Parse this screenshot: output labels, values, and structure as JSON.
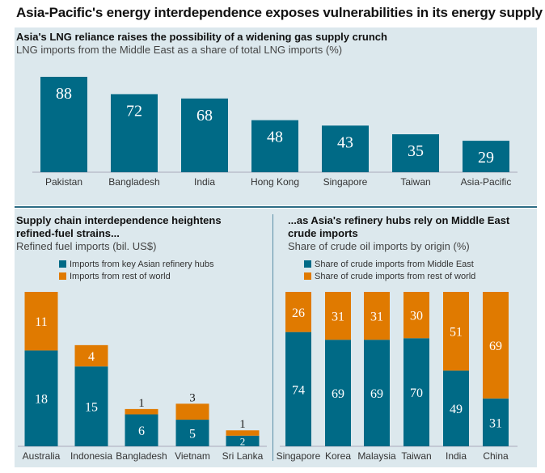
{
  "title": "Asia-Pacific's energy interdependence exposes vulnerabilities in its energy supply",
  "colors": {
    "teal": "#006a86",
    "orange": "#e07a00",
    "panel_bg": "#dce8ed"
  },
  "chart_data": [
    {
      "type": "bar",
      "title": "Asia's LNG reliance raises the possibility of a widening gas supply crunch",
      "subtitle": "LNG imports from the Middle East as a share of total LNG imports (%)",
      "categories": [
        "Pakistan",
        "Bangladesh",
        "India",
        "Hong Kong",
        "Singapore",
        "Taiwan",
        "Asia-Pacific"
      ],
      "values": [
        88,
        72,
        68,
        48,
        43,
        35,
        29
      ],
      "ylim": [
        0,
        100
      ]
    },
    {
      "type": "bar",
      "stacked": true,
      "title": "Supply chain interdependence heightens refined-fuel strains...",
      "subtitle": "Refined fuel imports (bil. US$)",
      "categories": [
        "Australia",
        "Indonesia",
        "Bangladesh",
        "Vietnam",
        "Sri Lanka"
      ],
      "series": [
        {
          "name": "Imports from key Asian refinery hubs",
          "values": [
            18,
            15,
            6,
            5,
            2
          ]
        },
        {
          "name": "Imports from rest of world",
          "values": [
            11,
            4,
            1,
            3,
            1
          ]
        }
      ]
    },
    {
      "type": "bar",
      "stacked": true,
      "title": "...as Asia's refinery hubs rely on Middle East crude imports",
      "subtitle": "Share of crude oil imports by origin (%)",
      "categories": [
        "Singapore",
        "Korea",
        "Malaysia",
        "Taiwan",
        "India",
        "China"
      ],
      "series": [
        {
          "name": "Share of crude imports from Middle East",
          "values": [
            74,
            69,
            69,
            70,
            49,
            31
          ]
        },
        {
          "name": "Share of crude imports from rest of world",
          "values": [
            26,
            31,
            31,
            30,
            51,
            69
          ]
        }
      ],
      "ylim": [
        0,
        100
      ]
    }
  ]
}
